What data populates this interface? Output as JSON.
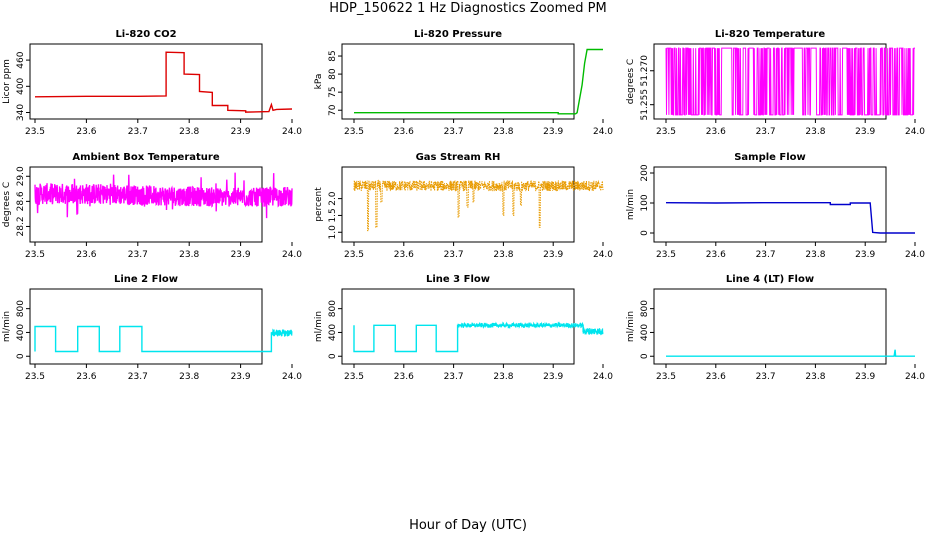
{
  "title": "HDP_150622  1 Hz Diagnostics Zoomed PM",
  "xlabel": "Hour of Day (UTC)",
  "chart_data": [
    {
      "type": "line",
      "title": "Li-820 CO2",
      "ylabel": "Licor ppm",
      "color": "#dd0000",
      "xlim": [
        23.5,
        24.0
      ],
      "ylim": [
        332,
        490
      ],
      "xticks": [
        23.5,
        23.6,
        23.7,
        23.8,
        23.9,
        24.0
      ],
      "xtick_labels": [
        "23.5",
        "23.6",
        "23.7",
        "23.8",
        "23.9",
        "24.0"
      ],
      "yticks": [
        340,
        400,
        460
      ],
      "ytick_labels": [
        "340",
        "400",
        "460"
      ],
      "x": [
        23.5,
        23.6,
        23.7,
        23.755,
        23.755,
        23.79,
        23.79,
        23.82,
        23.82,
        23.845,
        23.845,
        23.875,
        23.875,
        23.91,
        23.91,
        23.955,
        23.96,
        23.963,
        23.97,
        24.0
      ],
      "y": [
        376,
        377,
        377,
        378,
        478,
        477,
        428,
        427,
        388,
        386,
        356,
        356,
        345,
        344,
        341,
        342,
        358,
        345,
        347,
        348
      ]
    },
    {
      "type": "line",
      "title": "Li-820 Pressure",
      "ylabel": "kPa",
      "color": "#00bb00",
      "xlim": [
        23.5,
        24.0
      ],
      "ylim": [
        68.4,
        87.5
      ],
      "xticks": [
        23.5,
        23.6,
        23.7,
        23.8,
        23.9,
        24.0
      ],
      "xtick_labels": [
        "23.5",
        "23.6",
        "23.7",
        "23.8",
        "23.9",
        "24.0"
      ],
      "yticks": [
        70,
        75,
        80,
        85
      ],
      "ytick_labels": [
        "70",
        "75",
        "80",
        "85"
      ],
      "x": [
        23.5,
        23.9,
        23.91,
        23.91,
        23.945,
        23.948,
        23.958,
        23.963,
        23.968,
        24.0
      ],
      "y": [
        69.3,
        69.3,
        69.3,
        69.0,
        69.0,
        69.3,
        77,
        83,
        86.8,
        86.8
      ]
    },
    {
      "type": "line",
      "title": "Li-820 Temperature",
      "ylabel": "degrees C",
      "color": "#ff00ff",
      "xlim": [
        23.5,
        24.0
      ],
      "ylim": [
        51.25,
        51.2805
      ],
      "xticks": [
        23.5,
        23.6,
        23.7,
        23.8,
        23.9,
        24.0
      ],
      "xtick_labels": [
        "23.5",
        "23.6",
        "23.7",
        "23.8",
        "23.9",
        "24.0"
      ],
      "yticks": [
        51.255,
        51.27
      ],
      "ytick_labels": [
        "51.255",
        "51.270"
      ],
      "levels": [
        51.2505,
        51.28
      ],
      "gaps": [
        [
          23.612,
          23.628
        ],
        [
          23.666,
          23.676
        ],
        [
          23.758,
          23.77
        ],
        [
          23.79,
          23.802
        ]
      ]
    },
    {
      "type": "line",
      "title": "Ambient Box Temperature",
      "ylabel": "degrees C",
      "color": "#ff00ff",
      "xlim": [
        23.5,
        24.0
      ],
      "ylim": [
        28.0,
        29.1
      ],
      "xticks": [
        23.5,
        23.6,
        23.7,
        23.8,
        23.9,
        24.0
      ],
      "xtick_labels": [
        "23.5",
        "23.6",
        "23.7",
        "23.8",
        "23.9",
        "24.0"
      ],
      "yticks": [
        28.2,
        28.6,
        29.0
      ],
      "ytick_labels": [
        "28.2",
        "28.6",
        "29.0"
      ],
      "x": [
        23.5,
        23.6,
        23.7,
        23.8,
        23.9,
        24.0
      ],
      "y": [
        28.72,
        28.72,
        28.7,
        28.68,
        28.66,
        28.68
      ],
      "spread": [
        0.17,
        0.17,
        0.16,
        0.16,
        0.15,
        0.16
      ],
      "spikes": 0.23
    },
    {
      "type": "line",
      "title": "Gas Stream RH",
      "ylabel": "percent",
      "color": "#e89b00",
      "xlim": [
        23.5,
        24.0
      ],
      "ylim": [
        0.8,
        2.85
      ],
      "xticks": [
        23.5,
        23.6,
        23.7,
        23.8,
        23.9,
        24.0
      ],
      "xtick_labels": [
        "23.5",
        "23.6",
        "23.7",
        "23.8",
        "23.9",
        "24.0"
      ],
      "yticks": [
        1.0,
        1.5,
        2.0
      ],
      "ytick_labels": [
        "1.0",
        "1.5",
        "2.0"
      ],
      "x": [
        23.5,
        24.0
      ],
      "y": [
        2.38,
        2.38
      ],
      "spread": [
        0.16,
        0.16
      ],
      "dips": [
        {
          "x": 23.528,
          "y": 1.05
        },
        {
          "x": 23.545,
          "y": 1.15
        },
        {
          "x": 23.555,
          "y": 1.9
        },
        {
          "x": 23.71,
          "y": 1.45
        },
        {
          "x": 23.728,
          "y": 1.75
        },
        {
          "x": 23.74,
          "y": 1.9
        },
        {
          "x": 23.8,
          "y": 1.5
        },
        {
          "x": 23.82,
          "y": 1.5
        },
        {
          "x": 23.835,
          "y": 1.8
        },
        {
          "x": 23.873,
          "y": 1.15
        }
      ]
    },
    {
      "type": "line",
      "title": "Sample Flow",
      "ylabel": "ml/min",
      "color": "#0000cc",
      "xlim": [
        23.5,
        24.0
      ],
      "ylim": [
        -20,
        210
      ],
      "xticks": [
        23.5,
        23.6,
        23.7,
        23.8,
        23.9,
        24.0
      ],
      "xtick_labels": [
        "23.5",
        "23.6",
        "23.7",
        "23.8",
        "23.9",
        "24.0"
      ],
      "yticks": [
        0,
        100,
        200
      ],
      "ytick_labels": [
        "0",
        "100",
        "200"
      ],
      "x": [
        23.5,
        23.6,
        23.7,
        23.83,
        23.83,
        23.87,
        23.87,
        23.91,
        23.915,
        23.93,
        24.0
      ],
      "y": [
        101,
        100,
        101,
        101,
        95,
        95,
        100,
        100,
        2,
        0,
        0
      ]
    },
    {
      "type": "line",
      "title": "Line 2 Flow",
      "ylabel": "ml/min",
      "color": "#00e5ee",
      "xlim": [
        23.5,
        24.0
      ],
      "ylim": [
        -80,
        1080
      ],
      "xticks": [
        23.5,
        23.6,
        23.7,
        23.8,
        23.9,
        24.0
      ],
      "xtick_labels": [
        "23.5",
        "23.6",
        "23.7",
        "23.8",
        "23.9",
        "24.0"
      ],
      "yticks": [
        0,
        400,
        800
      ],
      "ytick_labels": [
        "0",
        "400",
        "800"
      ],
      "x": [
        23.5,
        23.5,
        23.54,
        23.54,
        23.583,
        23.583,
        23.625,
        23.625,
        23.665,
        23.665,
        23.708,
        23.708,
        23.96,
        23.96,
        24.0
      ],
      "y": [
        80,
        500,
        500,
        80,
        80,
        500,
        500,
        80,
        80,
        500,
        500,
        80,
        80,
        390,
        390
      ]
    },
    {
      "type": "line",
      "title": "Line 3 Flow",
      "ylabel": "ml/min",
      "color": "#00e5ee",
      "xlim": [
        23.5,
        24.0
      ],
      "ylim": [
        -80,
        1080
      ],
      "xticks": [
        23.5,
        23.6,
        23.7,
        23.8,
        23.9,
        24.0
      ],
      "xtick_labels": [
        "23.5",
        "23.6",
        "23.7",
        "23.8",
        "23.9",
        "24.0"
      ],
      "yticks": [
        0,
        400,
        800
      ],
      "ytick_labels": [
        "0",
        "400",
        "800"
      ],
      "x": [
        23.5,
        23.5,
        23.5,
        23.54,
        23.54,
        23.583,
        23.583,
        23.625,
        23.625,
        23.665,
        23.665,
        23.708,
        23.708,
        23.96,
        23.96,
        24.0
      ],
      "y": [
        80,
        520,
        80,
        80,
        520,
        520,
        80,
        80,
        520,
        520,
        80,
        80,
        520,
        520,
        420,
        420
      ]
    },
    {
      "type": "line",
      "title": "Line 4 (LT) Flow",
      "ylabel": "ml/min",
      "color": "#00e5ee",
      "xlim": [
        23.5,
        24.0
      ],
      "ylim": [
        -80,
        1080
      ],
      "xticks": [
        23.5,
        23.6,
        23.7,
        23.8,
        23.9,
        24.0
      ],
      "xtick_labels": [
        "23.5",
        "23.6",
        "23.7",
        "23.8",
        "23.9",
        "24.0"
      ],
      "yticks": [
        0,
        400,
        800
      ],
      "ytick_labels": [
        "0",
        "400",
        "800"
      ],
      "x": [
        23.5,
        23.958,
        23.96,
        23.961,
        23.963,
        24.0
      ],
      "y": [
        0,
        0,
        110,
        0,
        0,
        0
      ]
    }
  ]
}
